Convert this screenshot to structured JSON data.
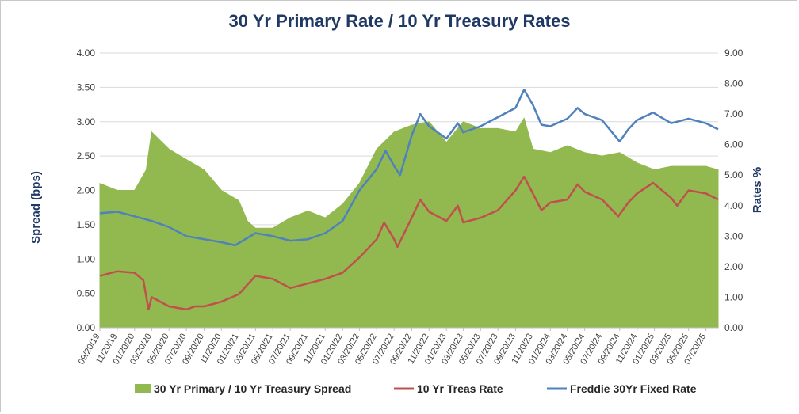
{
  "chart_data": {
    "type": "area+line",
    "title": "30 Yr Primary Rate / 10 Yr Treasury Rates",
    "ylabel_left": "Spread (bps)",
    "ylabel_right": "Rates %",
    "ylim_left": [
      0,
      4
    ],
    "ylim_right": [
      0,
      9
    ],
    "yticks_left": [
      "0.00",
      "0.50",
      "1.00",
      "1.50",
      "2.00",
      "2.50",
      "3.00",
      "3.50",
      "4.00"
    ],
    "yticks_right": [
      "0.00",
      "1.00",
      "2.00",
      "3.00",
      "4.00",
      "5.00",
      "6.00",
      "7.00",
      "8.00",
      "9.00"
    ],
    "x_range": [
      "09/20/19",
      "09/01/25"
    ],
    "xticks": [
      "09/20/19",
      "11/20/19",
      "01/20/20",
      "03/20/20",
      "05/20/20",
      "07/20/20",
      "09/20/20",
      "11/20/20",
      "01/20/21",
      "03/20/21",
      "05/20/21",
      "07/20/21",
      "09/20/21",
      "11/20/21",
      "01/20/22",
      "03/20/22",
      "05/20/22",
      "07/20/22",
      "09/20/22",
      "11/20/22",
      "01/20/23",
      "03/20/23",
      "05/20/23",
      "07/20/23",
      "09/20/23",
      "11/20/23",
      "01/20/24",
      "03/20/24",
      "05/20/24",
      "07/20/24",
      "09/20/24",
      "11/20/24",
      "01/20/25",
      "03/20/25",
      "05/20/25",
      "07/20/25"
    ],
    "grid": "horizontal",
    "legend_position": "bottom",
    "series": [
      {
        "name": "30 Yr Primary / 10 Yr Treasury Spread",
        "type": "area",
        "axis": "left",
        "color": "#92b94f",
        "points": [
          [
            "09/20/19",
            2.1
          ],
          [
            "11/20/19",
            2.0
          ],
          [
            "01/20/20",
            2.0
          ],
          [
            "03/01/20",
            2.3
          ],
          [
            "03/20/20",
            2.85
          ],
          [
            "05/20/20",
            2.6
          ],
          [
            "07/20/20",
            2.45
          ],
          [
            "09/20/20",
            2.3
          ],
          [
            "11/20/20",
            2.0
          ],
          [
            "01/20/21",
            1.85
          ],
          [
            "02/20/21",
            1.55
          ],
          [
            "03/20/21",
            1.45
          ],
          [
            "05/20/21",
            1.45
          ],
          [
            "07/20/21",
            1.6
          ],
          [
            "09/20/21",
            1.7
          ],
          [
            "11/20/21",
            1.6
          ],
          [
            "01/20/22",
            1.8
          ],
          [
            "03/20/22",
            2.1
          ],
          [
            "05/20/22",
            2.6
          ],
          [
            "07/20/22",
            2.85
          ],
          [
            "09/20/22",
            2.95
          ],
          [
            "11/20/22",
            3.0
          ],
          [
            "01/20/23",
            2.7
          ],
          [
            "03/20/23",
            3.0
          ],
          [
            "05/20/23",
            2.9
          ],
          [
            "07/20/23",
            2.9
          ],
          [
            "09/20/23",
            2.85
          ],
          [
            "10/20/23",
            3.05
          ],
          [
            "11/20/23",
            2.6
          ],
          [
            "01/20/24",
            2.55
          ],
          [
            "03/20/24",
            2.65
          ],
          [
            "05/20/24",
            2.55
          ],
          [
            "07/20/24",
            2.5
          ],
          [
            "09/20/24",
            2.55
          ],
          [
            "11/20/24",
            2.4
          ],
          [
            "01/20/25",
            2.3
          ],
          [
            "03/20/25",
            2.35
          ],
          [
            "05/20/25",
            2.35
          ],
          [
            "07/20/25",
            2.35
          ],
          [
            "09/01/25",
            2.3
          ]
        ]
      },
      {
        "name": "10 Yr Treas Rate",
        "type": "line",
        "axis": "right",
        "color": "#c0504d",
        "points": [
          [
            "09/20/19",
            1.7
          ],
          [
            "11/20/19",
            1.85
          ],
          [
            "01/20/20",
            1.8
          ],
          [
            "02/20/20",
            1.55
          ],
          [
            "03/09/20",
            0.6
          ],
          [
            "03/20/20",
            1.0
          ],
          [
            "05/20/20",
            0.7
          ],
          [
            "07/20/20",
            0.6
          ],
          [
            "08/20/20",
            0.7
          ],
          [
            "09/20/20",
            0.7
          ],
          [
            "11/20/20",
            0.85
          ],
          [
            "01/20/21",
            1.1
          ],
          [
            "03/20/21",
            1.7
          ],
          [
            "05/20/21",
            1.6
          ],
          [
            "07/20/21",
            1.3
          ],
          [
            "09/20/21",
            1.45
          ],
          [
            "11/20/21",
            1.6
          ],
          [
            "01/20/22",
            1.8
          ],
          [
            "03/20/22",
            2.3
          ],
          [
            "05/20/22",
            2.9
          ],
          [
            "06/15/22",
            3.45
          ],
          [
            "07/20/22",
            2.9
          ],
          [
            "08/01/22",
            2.65
          ],
          [
            "09/20/22",
            3.6
          ],
          [
            "10/20/22",
            4.2
          ],
          [
            "11/20/22",
            3.8
          ],
          [
            "01/20/23",
            3.5
          ],
          [
            "03/01/23",
            4.0
          ],
          [
            "03/20/23",
            3.45
          ],
          [
            "05/20/23",
            3.6
          ],
          [
            "07/20/23",
            3.85
          ],
          [
            "09/20/23",
            4.5
          ],
          [
            "10/20/23",
            4.95
          ],
          [
            "11/20/23",
            4.4
          ],
          [
            "12/20/23",
            3.85
          ],
          [
            "01/20/24",
            4.1
          ],
          [
            "03/20/24",
            4.2
          ],
          [
            "04/25/24",
            4.7
          ],
          [
            "05/20/24",
            4.45
          ],
          [
            "07/20/24",
            4.2
          ],
          [
            "09/15/24",
            3.65
          ],
          [
            "10/20/24",
            4.1
          ],
          [
            "11/20/24",
            4.4
          ],
          [
            "01/15/25",
            4.75
          ],
          [
            "03/20/25",
            4.25
          ],
          [
            "04/10/25",
            4.0
          ],
          [
            "05/20/25",
            4.5
          ],
          [
            "07/20/25",
            4.4
          ],
          [
            "09/01/25",
            4.2
          ]
        ]
      },
      {
        "name": "Freddie 30Yr Fixed Rate",
        "type": "line",
        "axis": "right",
        "color": "#4f81bd",
        "points": [
          [
            "09/20/19",
            3.75
          ],
          [
            "11/20/19",
            3.8
          ],
          [
            "01/20/20",
            3.65
          ],
          [
            "03/20/20",
            3.5
          ],
          [
            "05/20/20",
            3.3
          ],
          [
            "07/20/20",
            3.0
          ],
          [
            "09/20/20",
            2.9
          ],
          [
            "11/20/20",
            2.8
          ],
          [
            "01/07/21",
            2.7
          ],
          [
            "03/20/21",
            3.1
          ],
          [
            "05/20/21",
            3.0
          ],
          [
            "07/20/21",
            2.85
          ],
          [
            "09/20/21",
            2.9
          ],
          [
            "11/20/21",
            3.1
          ],
          [
            "01/20/22",
            3.5
          ],
          [
            "03/20/22",
            4.5
          ],
          [
            "05/20/22",
            5.2
          ],
          [
            "06/20/22",
            5.8
          ],
          [
            "07/20/22",
            5.3
          ],
          [
            "08/10/22",
            5.0
          ],
          [
            "09/20/22",
            6.3
          ],
          [
            "10/20/22",
            7.0
          ],
          [
            "11/20/22",
            6.6
          ],
          [
            "01/20/23",
            6.2
          ],
          [
            "03/01/23",
            6.7
          ],
          [
            "03/20/23",
            6.4
          ],
          [
            "05/20/23",
            6.6
          ],
          [
            "07/20/23",
            6.9
          ],
          [
            "09/20/23",
            7.2
          ],
          [
            "10/20/23",
            7.8
          ],
          [
            "11/20/23",
            7.3
          ],
          [
            "12/20/23",
            6.65
          ],
          [
            "01/20/24",
            6.6
          ],
          [
            "03/20/24",
            6.85
          ],
          [
            "04/25/24",
            7.2
          ],
          [
            "05/20/24",
            7.0
          ],
          [
            "07/20/24",
            6.8
          ],
          [
            "09/20/24",
            6.1
          ],
          [
            "10/20/24",
            6.5
          ],
          [
            "11/20/24",
            6.8
          ],
          [
            "01/15/25",
            7.05
          ],
          [
            "03/20/25",
            6.7
          ],
          [
            "05/20/25",
            6.85
          ],
          [
            "07/20/25",
            6.7
          ],
          [
            "09/01/25",
            6.5
          ]
        ]
      }
    ]
  }
}
